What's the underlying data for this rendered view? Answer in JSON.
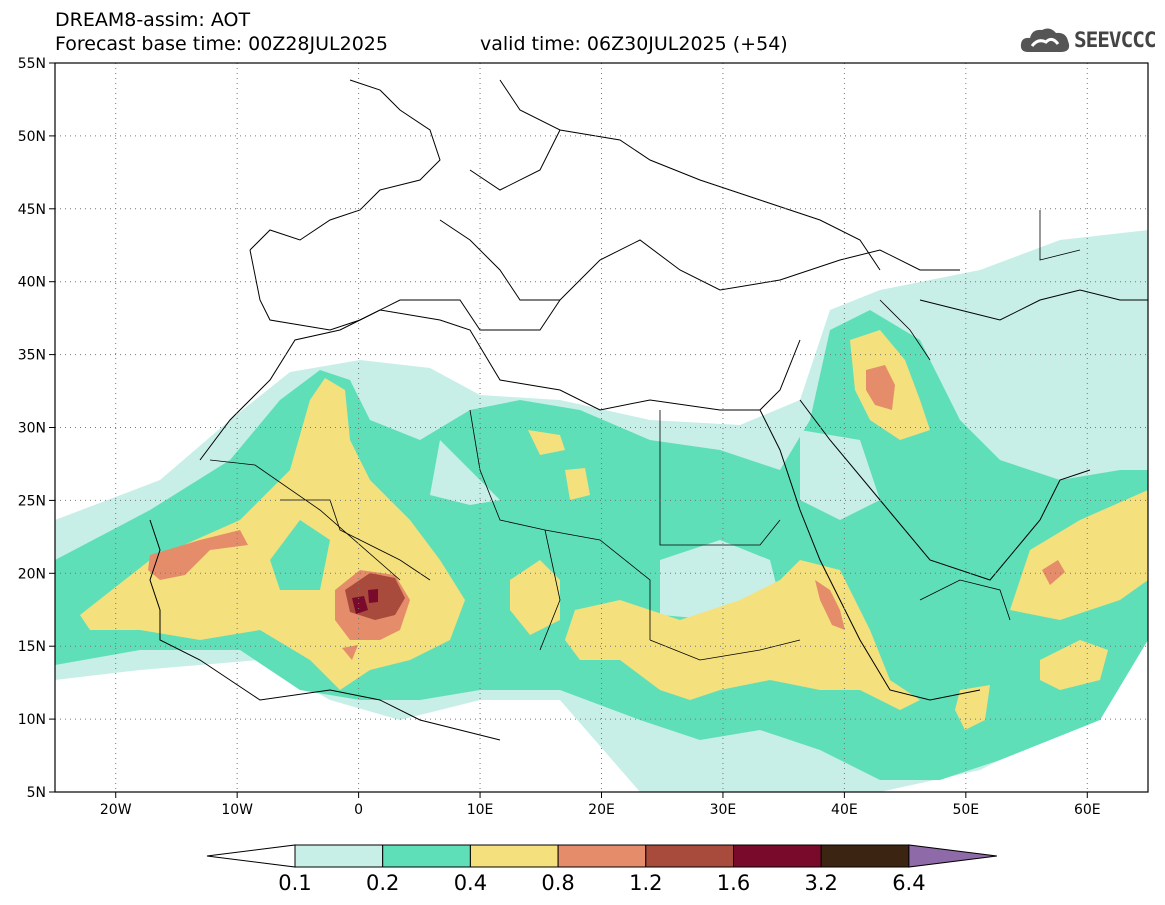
{
  "header": {
    "model": "DREAM8-assim: AOT",
    "base_time": "Forecast base time: 00Z28JUL2025",
    "valid_time": "valid time: 06Z30JUL2025 (+54)"
  },
  "logo": {
    "text": "SEEVCCC",
    "icon": "cloud-logo-icon"
  },
  "axes": {
    "lat_labels": [
      "55N",
      "50N",
      "45N",
      "40N",
      "35N",
      "30N",
      "25N",
      "20N",
      "15N",
      "10N",
      "5N"
    ],
    "lat_values": [
      55,
      50,
      45,
      40,
      35,
      30,
      25,
      20,
      15,
      10,
      5
    ],
    "lon_labels": [
      "20W",
      "10W",
      "0",
      "10E",
      "20E",
      "30E",
      "40E",
      "50E",
      "60E"
    ],
    "lon_values": [
      -20,
      -10,
      0,
      10,
      20,
      30,
      40,
      50,
      60
    ],
    "lon_range": [
      -25,
      65
    ],
    "lat_range": [
      5,
      55
    ],
    "gridlines": "dotted"
  },
  "colorbar": {
    "levels": [
      "0.1",
      "0.2",
      "0.4",
      "0.8",
      "1.2",
      "1.6",
      "3.2",
      "6.4"
    ],
    "colors": [
      "#ffffff",
      "#c7efe8",
      "#5fdfb8",
      "#f4e07c",
      "#e58c6a",
      "#a84a3c",
      "#7a0a2c",
      "#3b2512",
      "#8f6aa8"
    ]
  }
}
